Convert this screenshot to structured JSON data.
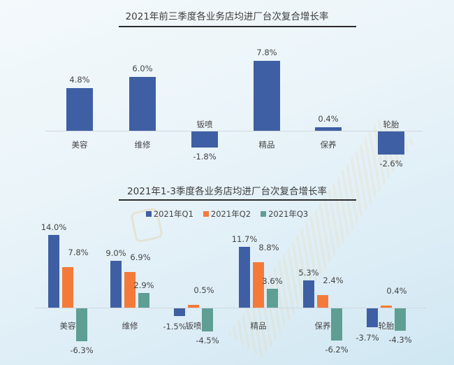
{
  "chart_data": [
    {
      "type": "bar",
      "title": "2021年前三季度各业务店均进厂台次复合增长率",
      "categories": [
        "美容",
        "维修",
        "钣喷",
        "精品",
        "保养",
        "轮胎"
      ],
      "values": [
        4.8,
        6.0,
        -1.8,
        7.8,
        0.4,
        -2.6
      ],
      "labels": [
        "4.8%",
        "6.0%",
        "-1.8%",
        "7.8%",
        "0.4%",
        "-2.6%"
      ],
      "xlabel": "",
      "ylabel": "",
      "grid": false,
      "color": "#3f5fa4"
    },
    {
      "type": "bar",
      "title": "2021年1-3季度各业务店均进厂台次复合增长率",
      "categories": [
        "美容",
        "维修",
        "钣喷",
        "精品",
        "保养",
        "轮胎"
      ],
      "series": [
        {
          "name": "2021年Q1",
          "color": "#3f5fa4",
          "values": [
            14.0,
            9.0,
            -1.5,
            11.7,
            5.3,
            -3.7
          ],
          "labels": [
            "14.0%",
            "9.0%",
            "-1.5%",
            "11.7%",
            "5.3%",
            "-3.7%"
          ]
        },
        {
          "name": "2021年Q2",
          "color": "#f47a3a",
          "values": [
            7.8,
            6.9,
            0.5,
            8.8,
            2.4,
            0.4
          ],
          "labels": [
            "7.8%",
            "6.9%",
            "0.5%",
            "8.8%",
            "2.4%",
            "0.4%"
          ]
        },
        {
          "name": "2021年Q3",
          "color": "#5e9e93",
          "values": [
            -6.3,
            2.9,
            -4.5,
            3.6,
            -6.2,
            -4.3
          ],
          "labels": [
            "-6.3%",
            "2.9%",
            "-4.5%",
            "3.6%",
            "-6.2%",
            "-4.3%"
          ]
        }
      ],
      "legend_position": "top",
      "grid": false
    }
  ]
}
